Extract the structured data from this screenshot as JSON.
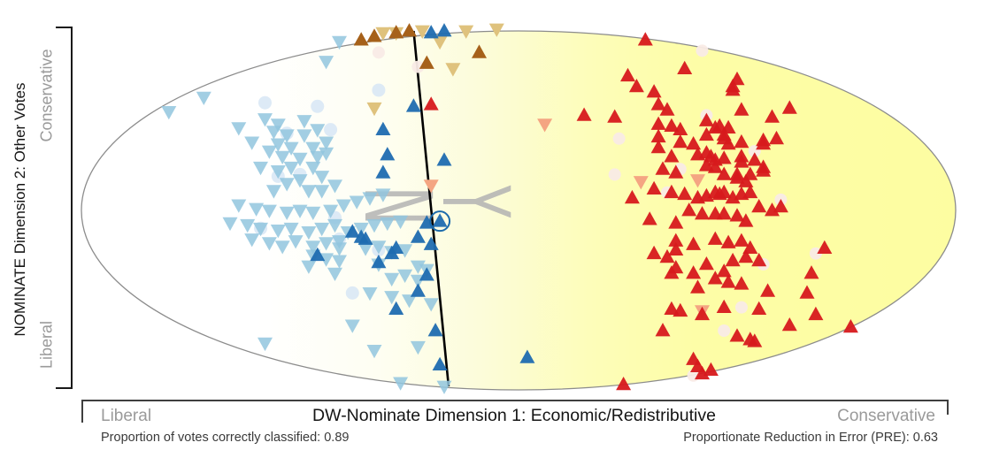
{
  "y_axis": {
    "label": "NOMINATE Dimension 2: Other Votes",
    "top_label": "Conservative",
    "bottom_label": "Liberal"
  },
  "x_axis": {
    "label": "DW-Nominate Dimension 1: Economic/Redistributive",
    "left_label": "Liberal",
    "right_label": "Conservative"
  },
  "stats": {
    "left": "Proportion of votes correctly classified: 0.89",
    "right": "Proportionate Reduction in Error (PRE): 0.63"
  },
  "watermark": {
    "letters": [
      "N",
      "Y"
    ],
    "full": "NY"
  },
  "colors": {
    "ellipse_stroke": "#8c8c8c",
    "yellow_fill": "#fdfda1",
    "cutting_line": "#000000",
    "axis_bracket": "#2a2a2a",
    "gray_labels": "#9a9a9a",
    "highlight_ring": "#1b6aab"
  },
  "chart_data": {
    "type": "scatter",
    "title": "",
    "xlabel": "DW-Nominate Dimension 1: Economic/Redistributive",
    "ylabel": "NOMINATE Dimension 2: Other Votes",
    "xlim": [
      -1,
      1
    ],
    "ylim": [
      -1,
      1
    ],
    "plot_shape": "ellipse",
    "grid": false,
    "legend": false,
    "background_gradient": [
      "#ffffff",
      "#fdfda1"
    ],
    "cutting_line": {
      "x1": -0.24,
      "y1": 1.0,
      "x2": -0.16,
      "y2": -0.98
    },
    "highlighted_point": {
      "x": -0.18,
      "y": -0.06,
      "series": "dark-blue-up"
    },
    "series": [
      {
        "name": "pale-blue-dots",
        "marker": "circle",
        "color": "#d9e8f5",
        "opacity": 0.9,
        "size": 7.5,
        "points": [
          [
            -0.58,
            0.6
          ],
          [
            -0.46,
            0.58
          ],
          [
            -0.32,
            0.67
          ],
          [
            -0.53,
            0.43
          ],
          [
            -0.43,
            0.45
          ],
          [
            -0.5,
            0.2
          ],
          [
            -0.55,
            0.19
          ],
          [
            -0.42,
            -0.04
          ],
          [
            -0.59,
            -0.1
          ],
          [
            -0.41,
            -0.16
          ],
          [
            -0.32,
            -0.22
          ],
          [
            -0.38,
            -0.46
          ]
        ]
      },
      {
        "name": "pale-pink-dots",
        "marker": "circle",
        "color": "#f9ebe6",
        "opacity": 0.95,
        "size": 7,
        "points": [
          [
            -0.32,
            0.88
          ],
          [
            -0.23,
            0.8
          ],
          [
            0.42,
            0.89
          ],
          [
            0.43,
            0.53
          ],
          [
            0.23,
            0.4
          ],
          [
            0.54,
            0.33
          ],
          [
            0.37,
            0.23
          ],
          [
            0.22,
            0.2
          ],
          [
            0.34,
            0.1
          ],
          [
            0.6,
            0.06
          ],
          [
            0.56,
            -0.3
          ],
          [
            0.68,
            -0.24
          ],
          [
            0.47,
            -0.67
          ],
          [
            0.51,
            -0.54
          ],
          [
            0.4,
            -0.92
          ]
        ]
      },
      {
        "name": "light-blue-down",
        "marker": "triangle-down",
        "color": "#92c5de",
        "opacity": 0.85,
        "size": 8.5,
        "points": [
          [
            -0.41,
            0.94
          ],
          [
            -0.44,
            0.83
          ],
          [
            -0.72,
            0.63
          ],
          [
            -0.8,
            0.55
          ],
          [
            -0.58,
            0.51
          ],
          [
            -0.49,
            0.5
          ],
          [
            -0.55,
            0.48
          ],
          [
            -0.64,
            0.46
          ],
          [
            -0.46,
            0.45
          ],
          [
            -0.53,
            0.42
          ],
          [
            -0.49,
            0.42
          ],
          [
            -0.56,
            0.44
          ],
          [
            -0.44,
            0.38
          ],
          [
            -0.55,
            0.37
          ],
          [
            -0.52,
            0.35
          ],
          [
            -0.47,
            0.35
          ],
          [
            -0.61,
            0.38
          ],
          [
            -0.57,
            0.33
          ],
          [
            -0.54,
            0.3
          ],
          [
            -0.5,
            0.29
          ],
          [
            -0.46,
            0.3
          ],
          [
            -0.44,
            0.32
          ],
          [
            -0.59,
            0.24
          ],
          [
            -0.55,
            0.22
          ],
          [
            -0.52,
            0.24
          ],
          [
            -0.47,
            0.24
          ],
          [
            -0.45,
            0.19
          ],
          [
            -0.5,
            0.17
          ],
          [
            -0.53,
            0.15
          ],
          [
            -0.42,
            0.14
          ],
          [
            -0.48,
            0.11
          ],
          [
            -0.45,
            0.11
          ],
          [
            -0.56,
            0.11
          ],
          [
            -0.31,
            0.09
          ],
          [
            -0.34,
            0.07
          ],
          [
            -0.37,
            0.05
          ],
          [
            -0.4,
            0.03
          ],
          [
            -0.64,
            0.03
          ],
          [
            -0.6,
            0.01
          ],
          [
            -0.57,
            0.0
          ],
          [
            -0.53,
            -0.01
          ],
          [
            -0.5,
            0.0
          ],
          [
            -0.47,
            -0.01
          ],
          [
            -0.43,
            0.0
          ],
          [
            -0.66,
            -0.07
          ],
          [
            -0.62,
            -0.08
          ],
          [
            -0.59,
            -0.1
          ],
          [
            -0.55,
            -0.11
          ],
          [
            -0.52,
            -0.1
          ],
          [
            -0.48,
            -0.12
          ],
          [
            -0.45,
            -0.1
          ],
          [
            -0.42,
            -0.08
          ],
          [
            -0.27,
            -0.06
          ],
          [
            -0.3,
            -0.07
          ],
          [
            -0.33,
            -0.08
          ],
          [
            -0.36,
            -0.1
          ],
          [
            -0.39,
            -0.12
          ],
          [
            -0.61,
            -0.16
          ],
          [
            -0.51,
            -0.17
          ],
          [
            -0.57,
            -0.18
          ],
          [
            -0.54,
            -0.2
          ],
          [
            -0.47,
            -0.2
          ],
          [
            -0.44,
            -0.18
          ],
          [
            -0.41,
            -0.17
          ],
          [
            -0.35,
            -0.21
          ],
          [
            -0.41,
            -0.21
          ],
          [
            -0.32,
            -0.2
          ],
          [
            -0.29,
            -0.23
          ],
          [
            -0.26,
            -0.22
          ],
          [
            -0.48,
            -0.31
          ],
          [
            -0.42,
            -0.35
          ],
          [
            -0.47,
            -0.25
          ],
          [
            -0.44,
            -0.27
          ],
          [
            -0.41,
            -0.28
          ],
          [
            -0.32,
            -0.3
          ],
          [
            -0.23,
            -0.31
          ],
          [
            -0.21,
            -0.33
          ],
          [
            -0.29,
            -0.38
          ],
          [
            -0.26,
            -0.36
          ],
          [
            -0.23,
            -0.39
          ],
          [
            -0.34,
            -0.46
          ],
          [
            -0.29,
            -0.48
          ],
          [
            -0.25,
            -0.5
          ],
          [
            -0.2,
            -0.52
          ],
          [
            -0.58,
            -0.74
          ],
          [
            -0.38,
            -0.64
          ],
          [
            -0.33,
            -0.78
          ],
          [
            -0.23,
            -0.76
          ],
          [
            -0.27,
            -0.96
          ],
          [
            -0.17,
            -0.98
          ]
        ]
      },
      {
        "name": "salmon-down",
        "marker": "triangle-down",
        "color": "#f4a582",
        "opacity": 1,
        "size": 8.5,
        "points": [
          [
            0.06,
            0.48
          ],
          [
            -0.2,
            0.14
          ],
          [
            0.28,
            0.16
          ],
          [
            0.41,
            0.17
          ],
          [
            0.42,
            -0.56
          ]
        ]
      },
      {
        "name": "tan-down",
        "marker": "triangle-down",
        "color": "#dfc27d",
        "opacity": 1,
        "size": 8.5,
        "points": [
          [
            -0.31,
            0.99
          ],
          [
            -0.28,
            0.99
          ],
          [
            -0.22,
            1.0
          ],
          [
            -0.18,
            0.94
          ],
          [
            -0.12,
            1.0
          ],
          [
            -0.05,
            1.01
          ],
          [
            -0.15,
            0.79
          ],
          [
            -0.33,
            0.57
          ]
        ]
      },
      {
        "name": "red-up",
        "marker": "triangle-up",
        "color": "#d7191c",
        "opacity": 0.95,
        "size": 8.5,
        "points": [
          [
            -0.2,
            0.59
          ],
          [
            0.15,
            0.53
          ],
          [
            0.29,
            0.95
          ],
          [
            0.24,
            -0.97
          ],
          [
            0.25,
            0.75
          ],
          [
            0.27,
            0.69
          ],
          [
            0.38,
            0.79
          ],
          [
            0.31,
            0.66
          ],
          [
            0.32,
            0.59
          ],
          [
            0.34,
            0.56
          ],
          [
            0.5,
            0.73
          ],
          [
            0.49,
            0.67
          ],
          [
            0.62,
            0.57
          ],
          [
            0.51,
            0.56
          ],
          [
            0.58,
            0.52
          ],
          [
            0.22,
            0.52
          ],
          [
            0.32,
            0.48
          ],
          [
            0.35,
            0.47
          ],
          [
            0.37,
            0.45
          ],
          [
            0.43,
            0.5
          ],
          [
            0.45,
            0.46
          ],
          [
            0.48,
            0.46
          ],
          [
            0.43,
            0.42
          ],
          [
            0.47,
            0.4
          ],
          [
            0.32,
            0.41
          ],
          [
            0.37,
            0.38
          ],
          [
            0.4,
            0.37
          ],
          [
            0.48,
            0.37
          ],
          [
            0.51,
            0.38
          ],
          [
            0.56,
            0.39
          ],
          [
            0.59,
            0.4
          ],
          [
            0.32,
            0.35
          ],
          [
            0.35,
            0.3
          ],
          [
            0.41,
            0.31
          ],
          [
            0.44,
            0.3
          ],
          [
            0.47,
            0.29
          ],
          [
            0.43,
            0.25
          ],
          [
            0.45,
            0.24
          ],
          [
            0.51,
            0.27
          ],
          [
            0.56,
            0.24
          ],
          [
            0.33,
            0.23
          ],
          [
            0.36,
            0.21
          ],
          [
            0.5,
            0.2
          ],
          [
            0.53,
            0.2
          ],
          [
            0.56,
            0.22
          ],
          [
            0.26,
            0.07
          ],
          [
            0.31,
            0.12
          ],
          [
            0.35,
            0.1
          ],
          [
            0.38,
            0.09
          ],
          [
            0.41,
            0.07
          ],
          [
            0.43,
            0.08
          ],
          [
            0.46,
            0.09
          ],
          [
            0.47,
            0.1
          ],
          [
            0.49,
            0.07
          ],
          [
            0.51,
            0.09
          ],
          [
            0.53,
            0.1
          ],
          [
            0.55,
            0.02
          ],
          [
            0.58,
            0.0
          ],
          [
            0.6,
            0.02
          ],
          [
            0.39,
            0.0
          ],
          [
            0.42,
            -0.02
          ],
          [
            0.45,
            -0.02
          ],
          [
            0.47,
            -0.02
          ],
          [
            0.5,
            -0.03
          ],
          [
            0.3,
            -0.05
          ],
          [
            0.36,
            -0.07
          ],
          [
            0.52,
            -0.06
          ],
          [
            0.49,
            0.69
          ],
          [
            0.46,
            0.47
          ],
          [
            0.47,
            0.42
          ],
          [
            0.56,
            0.37
          ],
          [
            0.43,
            0.32
          ],
          [
            0.45,
            0.28
          ],
          [
            0.51,
            0.3
          ],
          [
            0.54,
            0.28
          ],
          [
            0.47,
            0.2
          ],
          [
            0.5,
            0.18
          ],
          [
            0.52,
            0.16
          ],
          [
            0.45,
            0.1
          ],
          [
            0.36,
            -0.17
          ],
          [
            0.4,
            -0.19
          ],
          [
            0.45,
            -0.16
          ],
          [
            0.48,
            -0.18
          ],
          [
            0.51,
            -0.17
          ],
          [
            0.53,
            -0.21
          ],
          [
            0.31,
            -0.24
          ],
          [
            0.34,
            -0.26
          ],
          [
            0.36,
            -0.22
          ],
          [
            0.43,
            -0.3
          ],
          [
            0.49,
            -0.28
          ],
          [
            0.52,
            -0.26
          ],
          [
            0.55,
            -0.28
          ],
          [
            0.7,
            -0.21
          ],
          [
            0.67,
            -0.35
          ],
          [
            0.66,
            -0.46
          ],
          [
            0.35,
            -0.35
          ],
          [
            0.36,
            -0.32
          ],
          [
            0.4,
            -0.35
          ],
          [
            0.41,
            -0.43
          ],
          [
            0.45,
            -0.38
          ],
          [
            0.47,
            -0.34
          ],
          [
            0.48,
            -0.4
          ],
          [
            0.51,
            -0.41
          ],
          [
            0.57,
            -0.45
          ],
          [
            0.35,
            -0.55
          ],
          [
            0.37,
            -0.56
          ],
          [
            0.42,
            -0.58
          ],
          [
            0.47,
            -0.54
          ],
          [
            0.55,
            -0.55
          ],
          [
            0.68,
            -0.58
          ],
          [
            0.76,
            -0.65
          ],
          [
            0.33,
            -0.67
          ],
          [
            0.5,
            -0.7
          ],
          [
            0.53,
            -0.72
          ],
          [
            0.54,
            -0.73
          ],
          [
            0.62,
            -0.64
          ],
          [
            0.4,
            -0.83
          ],
          [
            0.41,
            -0.87
          ],
          [
            0.44,
            -0.89
          ],
          [
            0.42,
            -0.91
          ]
        ]
      },
      {
        "name": "brown-up",
        "marker": "triangle-up",
        "color": "#a6611a",
        "opacity": 1,
        "size": 8.5,
        "points": [
          [
            -0.36,
            0.95
          ],
          [
            -0.33,
            0.97
          ],
          [
            -0.28,
            0.99
          ],
          [
            -0.25,
            1.0
          ],
          [
            -0.09,
            0.88
          ],
          [
            -0.21,
            0.82
          ]
        ]
      },
      {
        "name": "dark-blue-up",
        "marker": "triangle-up",
        "color": "#1f6cb0",
        "opacity": 0.95,
        "size": 8.5,
        "points": [
          [
            -0.2,
            0.99
          ],
          [
            -0.17,
            1.0
          ],
          [
            -0.24,
            0.58
          ],
          [
            -0.31,
            0.45
          ],
          [
            -0.3,
            0.31
          ],
          [
            -0.31,
            0.21
          ],
          [
            -0.17,
            0.28
          ],
          [
            -0.21,
            -0.07
          ],
          [
            -0.23,
            -0.15
          ],
          [
            -0.2,
            -0.19
          ],
          [
            -0.38,
            -0.12
          ],
          [
            -0.36,
            -0.15
          ],
          [
            -0.35,
            -0.16
          ],
          [
            -0.46,
            -0.25
          ],
          [
            -0.29,
            -0.24
          ],
          [
            -0.28,
            -0.21
          ],
          [
            -0.32,
            -0.29
          ],
          [
            -0.21,
            -0.36
          ],
          [
            -0.23,
            -0.45
          ],
          [
            -0.28,
            -0.55
          ],
          [
            -0.19,
            -0.67
          ],
          [
            -0.18,
            -0.86
          ],
          [
            0.02,
            -0.82
          ],
          [
            -0.18,
            -0.06
          ]
        ]
      }
    ]
  }
}
